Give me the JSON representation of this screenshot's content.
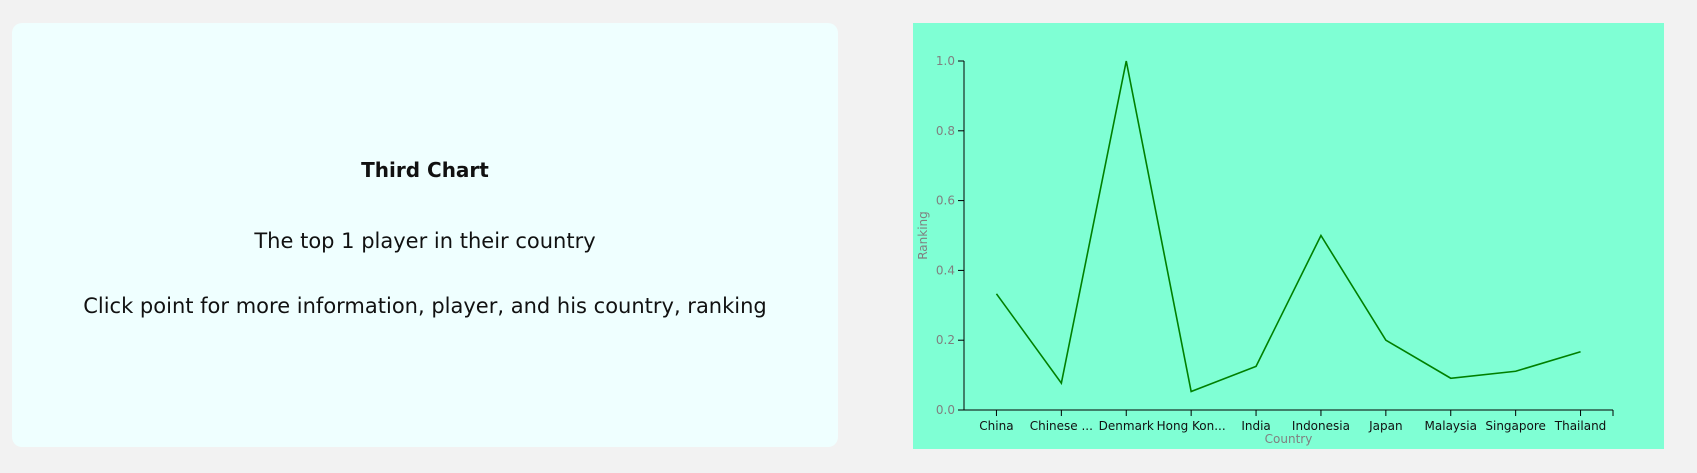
{
  "info": {
    "title": "Third Chart",
    "line1": "The top 1 player in their country",
    "line2": "Click point for more information, player, and his country, ranking"
  },
  "colors": {
    "page_bg": "#f2f2f2",
    "card_bg": "#efffff",
    "chart_bg": "#7fffd4",
    "line": "#008000",
    "axis": "#000000",
    "label_gray": "#808080"
  },
  "chart_data": {
    "type": "line",
    "categories": [
      "China",
      "Chinese ...",
      "Denmark",
      "Hong Kon...",
      "India",
      "Indonesia",
      "Japan",
      "Malaysia",
      "Singapore",
      "Thailand"
    ],
    "values": [
      0.333,
      0.077,
      1.0,
      0.053,
      0.125,
      0.5,
      0.2,
      0.091,
      0.111,
      0.167
    ],
    "xlabel": "Country",
    "ylabel": "Ranking",
    "ylim": [
      0,
      1
    ],
    "yticks": [
      "0.0",
      "0.2",
      "0.4",
      "0.6",
      "0.8",
      "1.0"
    ],
    "grid": false,
    "legend": "none"
  }
}
